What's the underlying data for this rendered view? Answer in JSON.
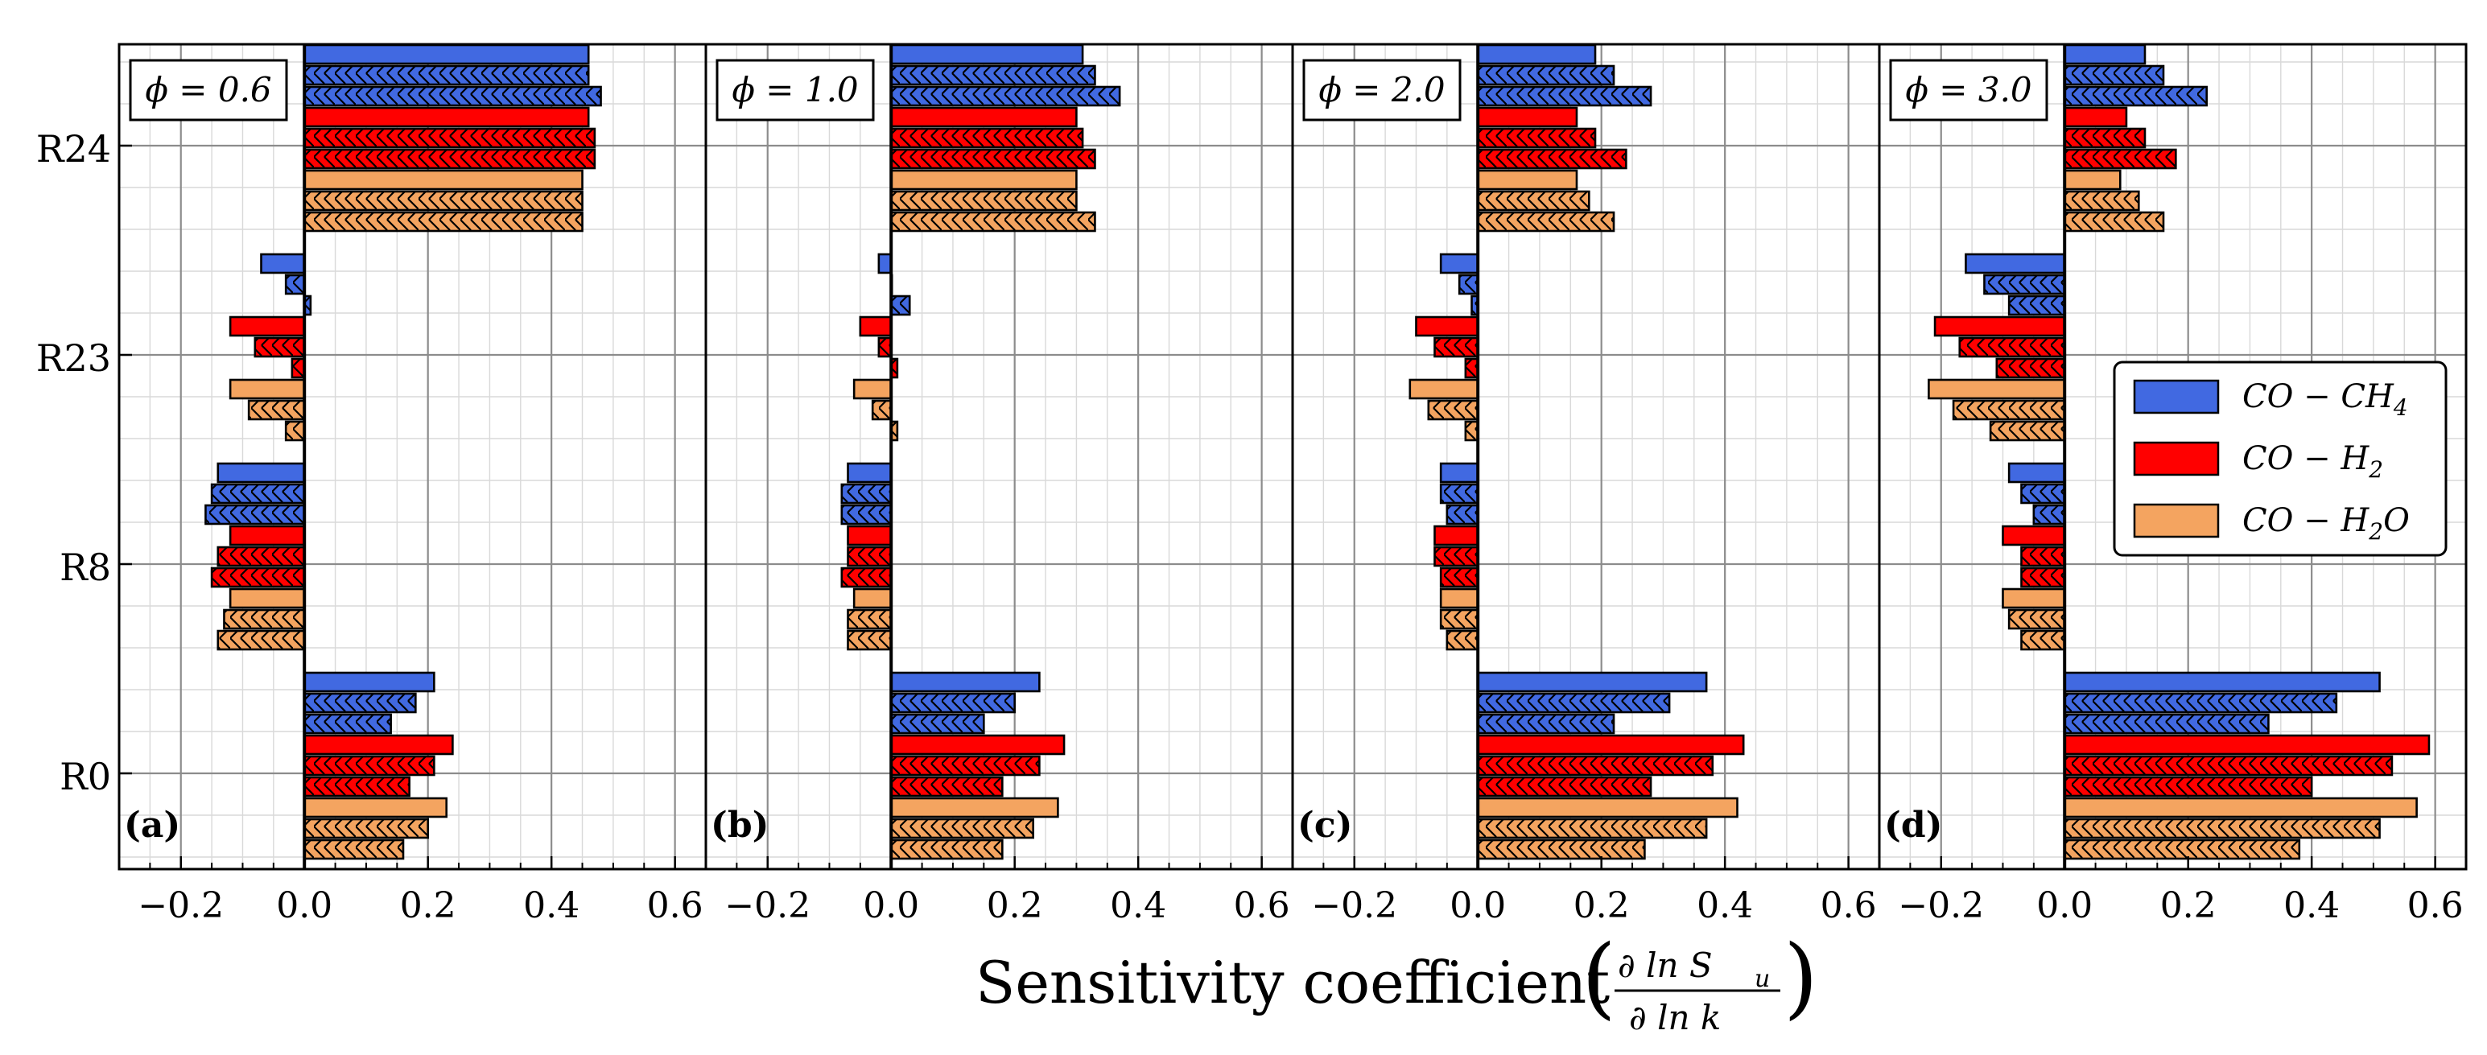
{
  "chart_data": {
    "type": "bar",
    "orientation": "horizontal",
    "xlabel": "Sensitivity coefficient",
    "xlabel_fraction": {
      "numerator": "∂ ln S",
      "numerator_sub": "u",
      "denominator": "∂ ln k"
    },
    "xlim": [
      -0.3,
      0.65
    ],
    "xticks": [
      -0.2,
      0.0,
      0.2,
      0.4,
      0.6
    ],
    "xtick_labels": [
      "−0.2",
      "0.0",
      "0.2",
      "0.4",
      "0.6"
    ],
    "ytick_labels": [
      "R0",
      "R8",
      "R23",
      "R24"
    ],
    "grid": true,
    "legend_position": "right of panel (d)",
    "series": [
      {
        "name": "CO−CH4",
        "label_main": "CO − CH",
        "label_sub": "4",
        "color": "#4169e1"
      },
      {
        "name": "CO−H2",
        "label_main": "CO − H",
        "label_sub": "2",
        "color": "#ff0000"
      },
      {
        "name": "CO−H2O",
        "label_main": "CO − H",
        "label_sub": "2",
        "label_tail": "O",
        "color": "#f4a460"
      }
    ],
    "bar_styles": [
      "solid",
      "hatched",
      "solid-light"
    ],
    "panels": [
      {
        "letter": "(a)",
        "phi": "ϕ = 0.6",
        "values": {
          "R24": [
            [
              0.46,
              0.46,
              0.48
            ],
            [
              0.46,
              0.47,
              0.47
            ],
            [
              0.45,
              0.45,
              0.45
            ]
          ],
          "R23": [
            [
              -0.07,
              -0.03,
              0.01
            ],
            [
              -0.12,
              -0.08,
              -0.02
            ],
            [
              -0.12,
              -0.09,
              -0.03
            ]
          ],
          "R8": [
            [
              -0.14,
              -0.15,
              -0.16
            ],
            [
              -0.12,
              -0.14,
              -0.15
            ],
            [
              -0.12,
              -0.13,
              -0.14
            ]
          ],
          "R0": [
            [
              0.21,
              0.18,
              0.14
            ],
            [
              0.24,
              0.21,
              0.17
            ],
            [
              0.23,
              0.2,
              0.16
            ]
          ]
        }
      },
      {
        "letter": "(b)",
        "phi": "ϕ = 1.0",
        "values": {
          "R24": [
            [
              0.31,
              0.33,
              0.37
            ],
            [
              0.3,
              0.31,
              0.33
            ],
            [
              0.3,
              0.3,
              0.33
            ]
          ],
          "R23": [
            [
              -0.02,
              0.0,
              0.03
            ],
            [
              -0.05,
              -0.02,
              0.01
            ],
            [
              -0.06,
              -0.03,
              0.01
            ]
          ],
          "R8": [
            [
              -0.07,
              -0.08,
              -0.08
            ],
            [
              -0.07,
              -0.07,
              -0.08
            ],
            [
              -0.06,
              -0.07,
              -0.07
            ]
          ],
          "R0": [
            [
              0.24,
              0.2,
              0.15
            ],
            [
              0.28,
              0.24,
              0.18
            ],
            [
              0.27,
              0.23,
              0.18
            ]
          ]
        }
      },
      {
        "letter": "(c)",
        "phi": "ϕ = 2.0",
        "values": {
          "R24": [
            [
              0.19,
              0.22,
              0.28
            ],
            [
              0.16,
              0.19,
              0.24
            ],
            [
              0.16,
              0.18,
              0.22
            ]
          ],
          "R23": [
            [
              -0.06,
              -0.03,
              -0.01
            ],
            [
              -0.1,
              -0.07,
              -0.02
            ],
            [
              -0.11,
              -0.08,
              -0.02
            ]
          ],
          "R8": [
            [
              -0.06,
              -0.06,
              -0.05
            ],
            [
              -0.07,
              -0.07,
              -0.06
            ],
            [
              -0.06,
              -0.06,
              -0.05
            ]
          ],
          "R0": [
            [
              0.37,
              0.31,
              0.22
            ],
            [
              0.43,
              0.38,
              0.28
            ],
            [
              0.42,
              0.37,
              0.27
            ]
          ]
        }
      },
      {
        "letter": "(d)",
        "phi": "ϕ = 3.0",
        "values": {
          "R24": [
            [
              0.13,
              0.16,
              0.23
            ],
            [
              0.1,
              0.13,
              0.18
            ],
            [
              0.09,
              0.12,
              0.16
            ]
          ],
          "R23": [
            [
              -0.16,
              -0.13,
              -0.09
            ],
            [
              -0.21,
              -0.17,
              -0.11
            ],
            [
              -0.22,
              -0.18,
              -0.12
            ]
          ],
          "R8": [
            [
              -0.09,
              -0.07,
              -0.05
            ],
            [
              -0.1,
              -0.07,
              -0.07
            ],
            [
              -0.1,
              -0.09,
              -0.07
            ]
          ],
          "R0": [
            [
              0.51,
              0.44,
              0.33
            ],
            [
              0.59,
              0.53,
              0.4
            ],
            [
              0.57,
              0.51,
              0.38
            ]
          ]
        }
      }
    ]
  }
}
